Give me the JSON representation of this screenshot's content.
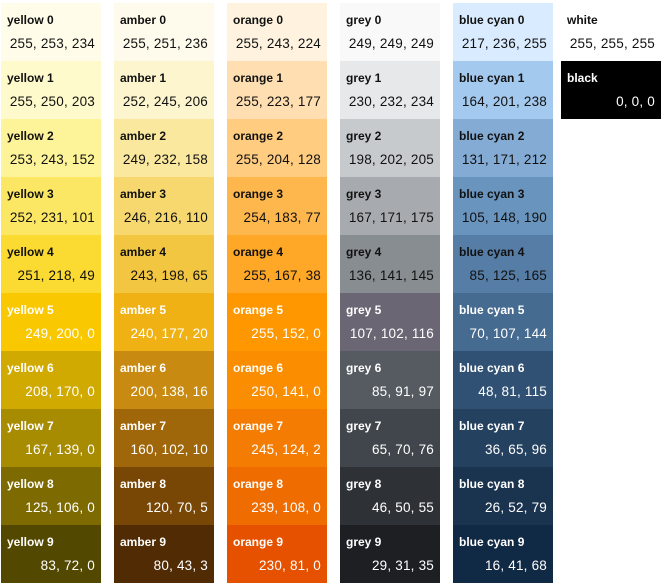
{
  "columns": [
    {
      "id": "yellow",
      "swatches": [
        {
          "name": "yellow 0",
          "rgb": "255, 253, 234",
          "hex": "#fffdea",
          "text": "dark"
        },
        {
          "name": "yellow 1",
          "rgb": "255, 250, 203",
          "hex": "#fffacb",
          "text": "dark"
        },
        {
          "name": "yellow 2",
          "rgb": "253, 243, 152",
          "hex": "#fdf398",
          "text": "dark"
        },
        {
          "name": "yellow 3",
          "rgb": "252, 231, 101",
          "hex": "#fce765",
          "text": "dark"
        },
        {
          "name": "yellow 4",
          "rgb": "251, 218, 49",
          "hex": "#fbda31",
          "text": "dark"
        },
        {
          "name": "yellow 5",
          "rgb": "249, 200, 0",
          "hex": "#f9c800",
          "text": "light"
        },
        {
          "name": "yellow 6",
          "rgb": "208, 170, 0",
          "hex": "#d0aa00",
          "text": "light"
        },
        {
          "name": "yellow 7",
          "rgb": "167, 139, 0",
          "hex": "#a78b00",
          "text": "light"
        },
        {
          "name": "yellow 8",
          "rgb": "125, 106, 0",
          "hex": "#7d6a00",
          "text": "light"
        },
        {
          "name": "yellow 9",
          "rgb": "83, 72, 0",
          "hex": "#534800",
          "text": "light"
        }
      ]
    },
    {
      "id": "amber",
      "swatches": [
        {
          "name": "amber 0",
          "rgb": "255, 251, 236",
          "hex": "#fffbec",
          "text": "dark"
        },
        {
          "name": "amber 1",
          "rgb": "252, 245, 206",
          "hex": "#fcf5ce",
          "text": "dark"
        },
        {
          "name": "amber 2",
          "rgb": "249, 232, 158",
          "hex": "#f9e89e",
          "text": "dark"
        },
        {
          "name": "amber 3",
          "rgb": "246, 216, 110",
          "hex": "#f6d86e",
          "text": "dark"
        },
        {
          "name": "amber 4",
          "rgb": "243, 198, 65",
          "hex": "#f3c641",
          "text": "dark"
        },
        {
          "name": "amber 5",
          "rgb": "240, 177, 20",
          "hex": "#f0b114",
          "text": "light"
        },
        {
          "name": "amber 6",
          "rgb": "200, 138, 16",
          "hex": "#c88a10",
          "text": "light"
        },
        {
          "name": "amber 7",
          "rgb": "160, 102, 10",
          "hex": "#a0660a",
          "text": "light"
        },
        {
          "name": "amber 8",
          "rgb": "120, 70, 5",
          "hex": "#784605",
          "text": "light"
        },
        {
          "name": "amber 9",
          "rgb": "80, 43, 3",
          "hex": "#502b03",
          "text": "light"
        }
      ]
    },
    {
      "id": "orange",
      "swatches": [
        {
          "name": "orange 0",
          "rgb": "255, 243, 224",
          "hex": "#fff3e0",
          "text": "dark"
        },
        {
          "name": "orange 1",
          "rgb": "255, 223, 177",
          "hex": "#ffdfb1",
          "text": "dark"
        },
        {
          "name": "orange 2",
          "rgb": "255, 204, 128",
          "hex": "#ffcc80",
          "text": "dark"
        },
        {
          "name": "orange 3",
          "rgb": "254, 183, 77",
          "hex": "#feb74d",
          "text": "dark"
        },
        {
          "name": "orange 4",
          "rgb": "255, 167, 38",
          "hex": "#ffa726",
          "text": "dark"
        },
        {
          "name": "orange 5",
          "rgb": "255, 152, 0",
          "hex": "#ff9800",
          "text": "light"
        },
        {
          "name": "orange 6",
          "rgb": "250, 141, 0",
          "hex": "#fa8d00",
          "text": "light"
        },
        {
          "name": "orange 7",
          "rgb": "245, 124, 2",
          "hex": "#f57c02",
          "text": "light"
        },
        {
          "name": "orange 8",
          "rgb": "239, 108, 0",
          "hex": "#ef6c00",
          "text": "light"
        },
        {
          "name": "orange 9",
          "rgb": "230, 81, 0",
          "hex": "#e65100",
          "text": "light"
        }
      ]
    },
    {
      "id": "grey",
      "swatches": [
        {
          "name": "grey 0",
          "rgb": "249, 249, 249",
          "hex": "#f9f9f9",
          "text": "dark"
        },
        {
          "name": "grey 1",
          "rgb": "230, 232, 234",
          "hex": "#e6e8ea",
          "text": "dark"
        },
        {
          "name": "grey 2",
          "rgb": "198, 202, 205",
          "hex": "#c6cacd",
          "text": "dark"
        },
        {
          "name": "grey 3",
          "rgb": "167, 171, 175",
          "hex": "#a7abaf",
          "text": "dark"
        },
        {
          "name": "grey 4",
          "rgb": "136, 141, 145",
          "hex": "#888d91",
          "text": "dark"
        },
        {
          "name": "grey 5",
          "rgb": "107, 102, 116",
          "hex": "#6b6674",
          "text": "light"
        },
        {
          "name": "grey 6",
          "rgb": "85, 91, 97",
          "hex": "#555b61",
          "text": "light"
        },
        {
          "name": "grey 7",
          "rgb": "65, 70, 76",
          "hex": "#41464c",
          "text": "light"
        },
        {
          "name": "grey 8",
          "rgb": "46, 50, 55",
          "hex": "#2e3237",
          "text": "light"
        },
        {
          "name": "grey 9",
          "rgb": "29, 31, 35",
          "hex": "#1d1f23",
          "text": "light"
        }
      ]
    },
    {
      "id": "blue-cyan",
      "swatches": [
        {
          "name": "blue cyan 0",
          "rgb": "217, 236, 255",
          "hex": "#d9ecff",
          "text": "dark"
        },
        {
          "name": "blue cyan 1",
          "rgb": "164, 201, 238",
          "hex": "#a4c9ee",
          "text": "dark"
        },
        {
          "name": "blue cyan 2",
          "rgb": "131, 171, 212",
          "hex": "#83abd4",
          "text": "dark"
        },
        {
          "name": "blue cyan 3",
          "rgb": "105, 148, 190",
          "hex": "#6994be",
          "text": "dark"
        },
        {
          "name": "blue cyan 4",
          "rgb": "85, 125, 165",
          "hex": "#557da5",
          "text": "dark"
        },
        {
          "name": "blue cyan 5",
          "rgb": "70, 107, 144",
          "hex": "#466b90",
          "text": "light"
        },
        {
          "name": "blue cyan 6",
          "rgb": "48, 81, 115",
          "hex": "#305173",
          "text": "light"
        },
        {
          "name": "blue cyan 7",
          "rgb": "36, 65, 96",
          "hex": "#244160",
          "text": "light"
        },
        {
          "name": "blue cyan 8",
          "rgb": "26, 52, 79",
          "hex": "#1a344f",
          "text": "light"
        },
        {
          "name": "blue cyan 9",
          "rgb": "16, 41, 68",
          "hex": "#102944",
          "text": "light"
        }
      ]
    },
    {
      "id": "white-black",
      "swatches": [
        {
          "name": "white",
          "rgb": "255, 255, 255",
          "hex": "#ffffff",
          "text": "dark"
        },
        {
          "name": "black",
          "rgb": "0, 0, 0",
          "hex": "#000000",
          "text": "light"
        }
      ]
    }
  ]
}
